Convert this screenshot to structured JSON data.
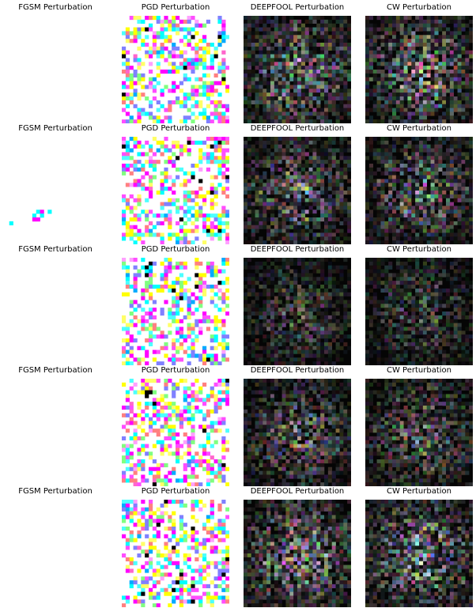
{
  "figure": {
    "columns": [
      {
        "key": "fgsm",
        "title": "FGSM Perturbation",
        "tone": "light"
      },
      {
        "key": "pgd",
        "title": "PGD Perturbation",
        "tone": "light"
      },
      {
        "key": "deepfool",
        "title": "DEEPFOOL Perturbation",
        "tone": "dark"
      },
      {
        "key": "cw",
        "title": "CW Perturbation",
        "tone": "dark"
      }
    ],
    "rows": [
      {
        "titles": [
          "FGSM Perturbation",
          "PGD Perturbation",
          "DEEPFOOL Perturbation",
          "CW Perturbation"
        ]
      },
      {
        "titles": [
          "FGSM Perturbation",
          "PGD Perturbation",
          "DEEPFOOL Perturbation",
          "CW Perturbation"
        ]
      },
      {
        "titles": [
          "FGSM Perturbation",
          "PGD Perturbation",
          "DEEPFOOL Perturbation",
          "CW Perturbation"
        ]
      },
      {
        "titles": [
          "FGSM Perturbation",
          "PGD Perturbation",
          "DEEPFOOL Perturbation",
          "CW Perturbation"
        ]
      },
      {
        "titles": [
          "FGSM Perturbation",
          "PGD Perturbation",
          "DEEPFOOL Perturbation",
          "CW Perturbation"
        ]
      }
    ]
  }
}
